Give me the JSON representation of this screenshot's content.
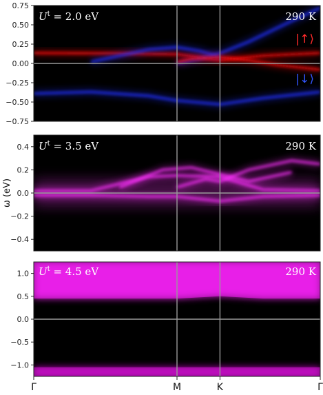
{
  "chart_data": [
    {
      "type": "heatmap",
      "panel_label": "U",
      "panel_label_sup": "t",
      "panel_label_value": " = 2.0 eV",
      "temperature": "290 K",
      "ylim": [
        -0.75,
        0.75
      ],
      "yticks": [
        0.75,
        0.5,
        0.25,
        0.0,
        -0.25,
        -0.5,
        -0.75
      ],
      "ytick_labels": [
        "0.75",
        "0.50",
        "0.25",
        "0.00",
        "−0.25",
        "−0.50",
        "−0.75"
      ],
      "legend": [
        {
          "label": "|↑⟩",
          "color": "#ff2a2a"
        },
        {
          "label": "|↓⟩",
          "color": "#3355ff"
        }
      ],
      "series": [
        {
          "name": "|↑⟩",
          "color": "#ff1010",
          "x": [
            0,
            0.3,
            0.5,
            0.65,
            0.8,
            1.0
          ],
          "y": [
            0.135,
            0.13,
            0.12,
            0.04,
            0.1,
            0.135
          ]
        },
        {
          "name": "|↓⟩",
          "color": "#2233ff",
          "x": [
            0,
            0.2,
            0.4,
            0.5,
            0.65,
            0.8,
            1.0
          ],
          "y": [
            -0.39,
            -0.37,
            -0.42,
            -0.48,
            -0.53,
            -0.45,
            -0.37
          ]
        },
        {
          "name": "|↓⟩",
          "color": "#2233ff",
          "x": [
            0.2,
            0.4,
            0.5,
            0.58,
            0.65
          ],
          "y": [
            0.02,
            0.18,
            0.21,
            0.16,
            0.08
          ]
        },
        {
          "name": "|↓⟩",
          "color": "#2233ff",
          "x": [
            0.5,
            0.58,
            0.65,
            0.75,
            0.9,
            1.0
          ],
          "y": [
            0.0,
            0.06,
            0.13,
            0.28,
            0.55,
            0.72
          ]
        },
        {
          "name": "|↑⟩",
          "color": "#ff1010",
          "x": [
            0.5,
            0.55,
            0.65,
            0.75,
            0.85,
            1.0
          ],
          "y": [
            0.02,
            0.06,
            0.08,
            0.04,
            -0.02,
            -0.08
          ]
        }
      ]
    },
    {
      "type": "heatmap",
      "panel_label": "U",
      "panel_label_sup": "t",
      "panel_label_value": " = 3.5 eV",
      "temperature": "290 K",
      "ylim": [
        -0.5,
        0.5
      ],
      "yticks": [
        0.4,
        0.2,
        0.0,
        -0.2,
        -0.4
      ],
      "ytick_labels": [
        "0.4",
        "0.2",
        "0.0",
        "−0.2",
        "−0.4"
      ],
      "ylabel": "ω (eV)",
      "series": [
        {
          "name": "",
          "color": "#ff33ff",
          "x": [
            0,
            0.2,
            0.4,
            0.5,
            0.65,
            0.8,
            1.0
          ],
          "y": [
            -0.02,
            -0.02,
            -0.03,
            -0.03,
            -0.07,
            -0.03,
            -0.02
          ]
        },
        {
          "name": "",
          "color": "#ff33ff",
          "x": [
            0,
            0.2,
            0.4,
            0.5,
            0.65,
            0.8,
            1.0
          ],
          "y": [
            0.02,
            0.02,
            0.14,
            0.15,
            0.14,
            0.03,
            0.02
          ]
        },
        {
          "name": "",
          "color": "#ff33ff",
          "x": [
            0.3,
            0.45,
            0.55,
            0.65,
            0.75,
            0.9
          ],
          "y": [
            0.05,
            0.2,
            0.22,
            0.16,
            0.1,
            0.18
          ]
        },
        {
          "name": "",
          "color": "#ff33ff",
          "x": [
            0.5,
            0.6,
            0.65,
            0.75,
            0.9,
            1.0
          ],
          "y": [
            0.05,
            0.12,
            0.1,
            0.2,
            0.28,
            0.25
          ]
        }
      ]
    },
    {
      "type": "heatmap",
      "panel_label": "U",
      "panel_label_sup": "t",
      "panel_label_value": " = 4.5 eV",
      "temperature": "290 K",
      "ylim": [
        -1.25,
        1.25
      ],
      "yticks": [
        1.0,
        0.5,
        0.0,
        -0.5,
        -1.0
      ],
      "ytick_labels": [
        "1.0",
        "0.5",
        "0.0",
        "−0.5",
        "−1.0"
      ],
      "bands": [
        {
          "name": "",
          "color": "#ff22ff",
          "x": [
            0,
            0.2,
            0.4,
            0.5,
            0.65,
            0.8,
            1.0
          ],
          "ylow": [
            0.45,
            0.45,
            0.45,
            0.45,
            0.5,
            0.45,
            0.45
          ],
          "yhigh": [
            1.25,
            1.25,
            1.25,
            1.25,
            1.25,
            1.25,
            1.25
          ]
        },
        {
          "name": "",
          "color": "#dd11dd",
          "x": [
            0,
            0.5,
            1.0
          ],
          "ylow": [
            -1.25,
            -1.25,
            -1.25
          ],
          "yhigh": [
            -1.05,
            -1.05,
            -1.05
          ]
        }
      ]
    }
  ],
  "xaxis": {
    "ticks": [
      0,
      0.5,
      0.65,
      1.0
    ],
    "labels": [
      "Γ",
      "M",
      "K",
      "Γ"
    ]
  }
}
